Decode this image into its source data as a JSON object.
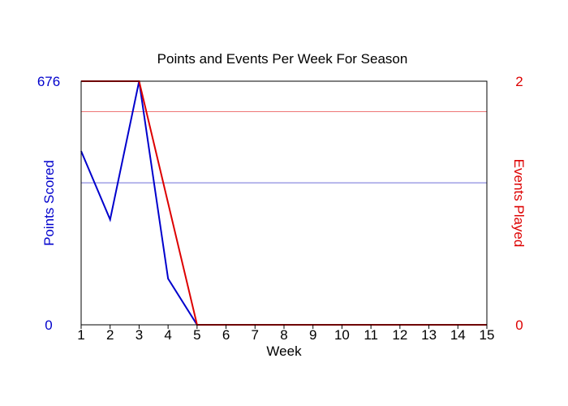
{
  "chart_data": {
    "type": "line",
    "title": "Points and Events Per Week For Season",
    "xlabel": "Week",
    "x": [
      1,
      2,
      3,
      4,
      5,
      6,
      7,
      8,
      9,
      10,
      11,
      12,
      13,
      14,
      15
    ],
    "xlim": [
      1,
      15
    ],
    "y_left": {
      "label": "Points Scored",
      "ticks": [
        "0",
        "676"
      ],
      "lim": [
        0,
        676
      ],
      "color": "#0000cc"
    },
    "y_right": {
      "label": "Events Played",
      "ticks": [
        "0",
        "2"
      ],
      "lim": [
        0,
        2
      ],
      "color": "#dd0000"
    },
    "series": [
      {
        "axis": "left",
        "color": "#0000cc",
        "values": [
          482,
          292,
          676,
          128,
          0,
          0,
          0,
          0,
          0,
          0,
          0,
          0,
          0,
          0,
          0
        ]
      },
      {
        "axis": "right",
        "color": "#dd0000",
        "values": [
          2,
          2,
          2,
          1,
          0,
          0,
          0,
          0,
          0,
          0,
          0,
          0,
          0,
          0,
          0
        ]
      }
    ],
    "reference_lines": [
      {
        "axis": "left",
        "value": 394,
        "color": "#6f6fd6"
      },
      {
        "axis": "right",
        "value": 1.75,
        "color": "#ee7777"
      }
    ],
    "grid": false
  }
}
